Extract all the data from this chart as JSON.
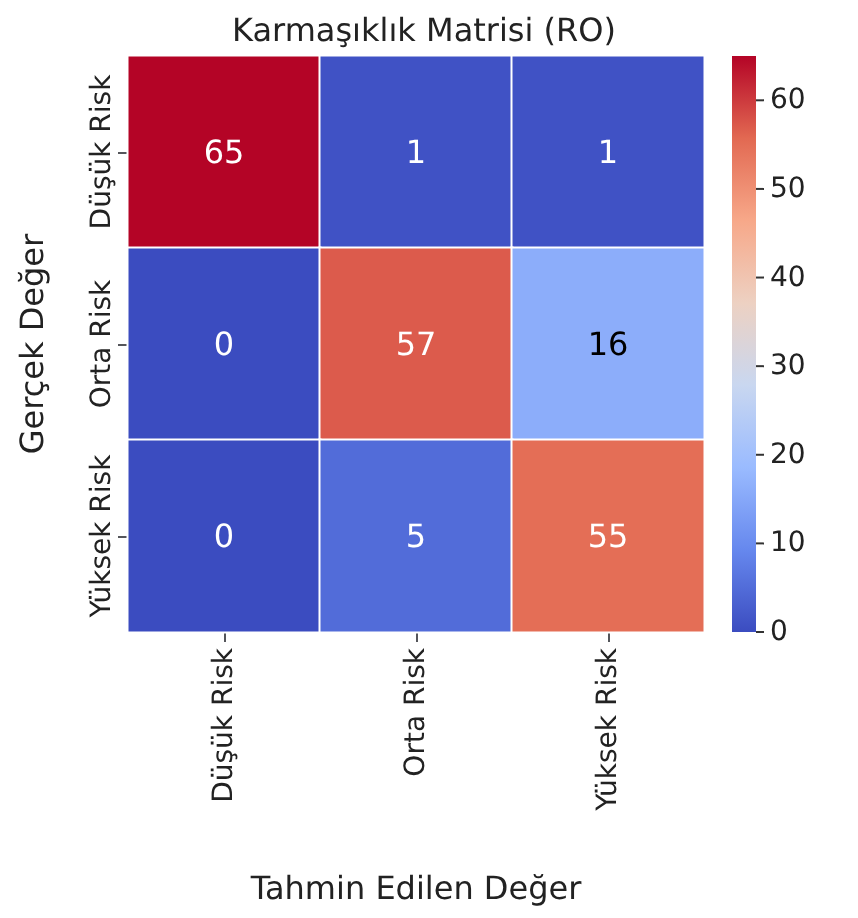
{
  "chart_data": {
    "type": "heatmap",
    "title": "Karmaşıklık Matrisi (RO)",
    "xlabel": "Tahmin Edilen Değer",
    "ylabel": "Gerçek Değer",
    "categories": [
      "Düşük Risk",
      "Orta Risk",
      "Yüksek Risk"
    ],
    "y_categories": [
      "Düşük Risk",
      "Orta Risk",
      "Yüksek Risk"
    ],
    "cells": [
      [
        65,
        1,
        1
      ],
      [
        0,
        57,
        16
      ],
      [
        0,
        5,
        55
      ]
    ],
    "data_labels": true,
    "clim": [
      0,
      65
    ],
    "cticks": [
      0,
      10,
      20,
      30,
      40,
      50,
      60
    ]
  }
}
